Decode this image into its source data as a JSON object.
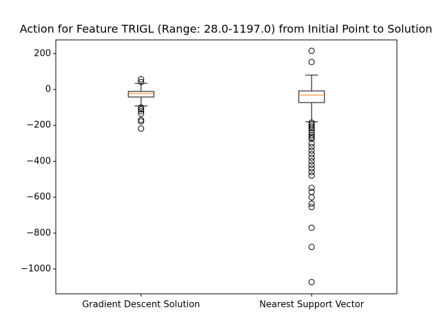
{
  "chart_data": {
    "type": "box",
    "title": "Action for Feature TRIGL (Range: 28.0-1197.0) from Initial Point to Solution",
    "categories": [
      "Gradient Descent Solution",
      "Nearest Support Vector"
    ],
    "boxes": [
      {
        "whislo": -92,
        "q1": -42,
        "med": -23,
        "q3": -11,
        "whishi": 34,
        "fliers": [
          57,
          42,
          -100,
          -110,
          -120,
          -135,
          -170,
          -178,
          -218
        ]
      },
      {
        "whislo": -180,
        "q1": -73,
        "med": -31,
        "q3": -8,
        "whishi": 80,
        "fliers": [
          215,
          153,
          -185,
          -195,
          -205,
          -215,
          -225,
          -240,
          -255,
          -265,
          -275,
          -300,
          -320,
          -340,
          -360,
          -380,
          -400,
          -420,
          -440,
          -460,
          -480,
          -548,
          -570,
          -601,
          -636,
          -655,
          -770,
          -877,
          -1073
        ]
      }
    ],
    "box_color": "#000000",
    "median_color": "#ff7f0e",
    "ylim": [
      -1138,
      276
    ],
    "yticks": [
      {
        "value": -1000,
        "label": "−1000"
      },
      {
        "value": -800,
        "label": "−800"
      },
      {
        "value": -600,
        "label": "−600"
      },
      {
        "value": -400,
        "label": "−400"
      },
      {
        "value": -200,
        "label": "−200"
      },
      0,
      200
    ]
  }
}
